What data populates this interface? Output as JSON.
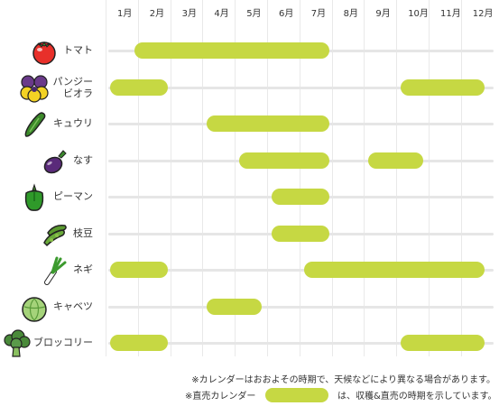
{
  "calendar": {
    "bar_color": "#c6d843",
    "months": [
      "1月",
      "2月",
      "3月",
      "4月",
      "5月",
      "6月",
      "7月",
      "8月",
      "9月",
      "10月",
      "11月",
      "12月"
    ],
    "vegetables": [
      {
        "icon": "tomato-icon",
        "name": "トマト",
        "periods": [
          [
            1.75,
            7.9
          ]
        ]
      },
      {
        "icon": "pansy-icon",
        "name_line1": "パンジー",
        "name_line2": "ビオラ",
        "periods": [
          [
            1.0,
            2.9
          ],
          [
            10.0,
            12.7
          ]
        ]
      },
      {
        "icon": "cucumber-icon",
        "name": "キュウリ",
        "periods": [
          [
            4.0,
            7.9
          ]
        ]
      },
      {
        "icon": "eggplant-icon",
        "name": "なす",
        "periods": [
          [
            5.0,
            7.9
          ],
          [
            9.0,
            10.8
          ]
        ]
      },
      {
        "icon": "green-pepper-icon",
        "name": "ピーマン",
        "periods": [
          [
            6.0,
            7.9
          ]
        ]
      },
      {
        "icon": "edamame-icon",
        "name": "枝豆",
        "periods": [
          [
            6.0,
            7.9
          ]
        ]
      },
      {
        "icon": "leek-icon",
        "name": "ネギ",
        "periods": [
          [
            1.0,
            2.9
          ],
          [
            7.0,
            12.7
          ]
        ]
      },
      {
        "icon": "cabbage-icon",
        "name": "キャベツ",
        "periods": [
          [
            4.0,
            5.8
          ]
        ]
      },
      {
        "icon": "broccoli-icon",
        "name": "ブロッコリー",
        "periods": [
          [
            1.0,
            2.9
          ],
          [
            10.0,
            12.7
          ]
        ]
      }
    ]
  },
  "notes": {
    "line1": "※カレンダーはおおよその時期で、天候などにより異なる場合があります。",
    "line2_prefix": "※直売カレンダー",
    "line2_suffix": "は、収穫&直売の時期を示しています。"
  }
}
